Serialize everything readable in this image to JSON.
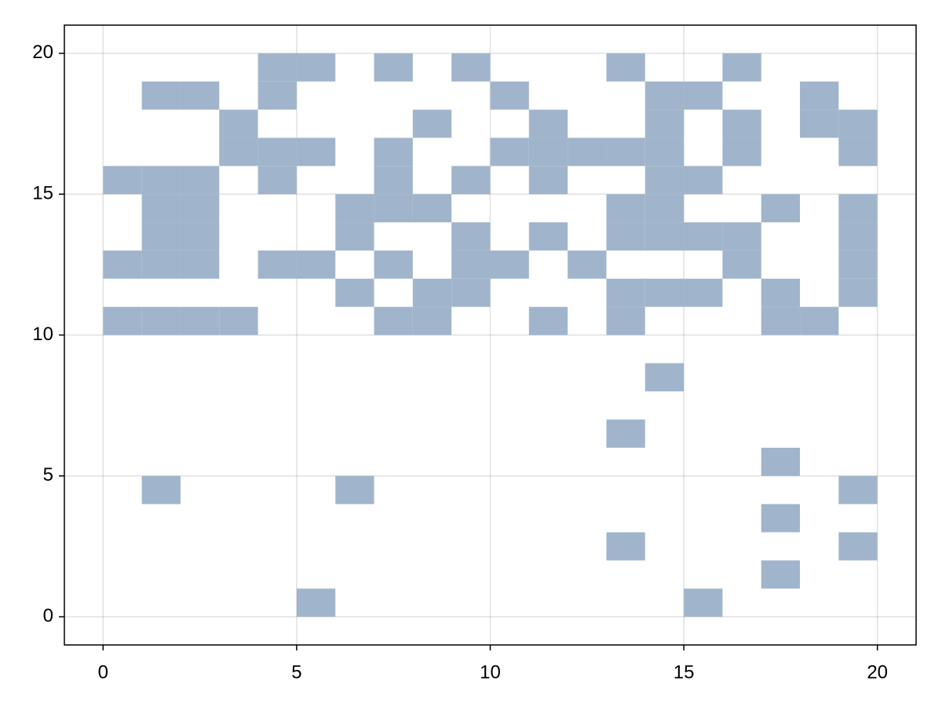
{
  "chart_data": {
    "type": "spy",
    "color": "#a0b5cc",
    "grid": true,
    "xlim": [
      -1,
      21
    ],
    "ylim": [
      -1,
      21
    ],
    "xticks": [
      0,
      5,
      10,
      15,
      20
    ],
    "yticks": [
      0,
      5,
      10,
      15,
      20
    ],
    "x": [
      4,
      5,
      7,
      9,
      13,
      16,
      1,
      2,
      4,
      10,
      14,
      15,
      18,
      3,
      8,
      11,
      14,
      16,
      18,
      19,
      3,
      4,
      5,
      7,
      10,
      11,
      12,
      13,
      14,
      16,
      19,
      0,
      1,
      2,
      4,
      7,
      9,
      11,
      14,
      15,
      1,
      2,
      6,
      7,
      8,
      13,
      14,
      17,
      19,
      1,
      2,
      6,
      9,
      11,
      13,
      14,
      15,
      16,
      19,
      0,
      1,
      2,
      4,
      5,
      7,
      9,
      10,
      12,
      16,
      19,
      6,
      8,
      9,
      13,
      14,
      15,
      17,
      19,
      0,
      1,
      2,
      3,
      7,
      8,
      11,
      13,
      17,
      18,
      14,
      13,
      17,
      1,
      6,
      19,
      17,
      13,
      19,
      17,
      5,
      15
    ],
    "y": [
      19,
      19,
      19,
      19,
      19,
      19,
      18,
      18,
      18,
      18,
      18,
      18,
      18,
      17,
      17,
      17,
      17,
      17,
      17,
      17,
      16,
      16,
      16,
      16,
      16,
      16,
      16,
      16,
      16,
      16,
      16,
      15,
      15,
      15,
      15,
      15,
      15,
      15,
      15,
      15,
      14,
      14,
      14,
      14,
      14,
      14,
      14,
      14,
      14,
      13,
      13,
      13,
      13,
      13,
      13,
      13,
      13,
      13,
      13,
      12,
      12,
      12,
      12,
      12,
      12,
      12,
      12,
      12,
      12,
      12,
      11,
      11,
      11,
      11,
      11,
      11,
      11,
      11,
      10,
      10,
      10,
      10,
      10,
      10,
      10,
      10,
      10,
      10,
      8,
      6,
      5,
      4,
      4,
      4,
      3,
      2,
      2,
      1,
      0,
      0
    ]
  }
}
